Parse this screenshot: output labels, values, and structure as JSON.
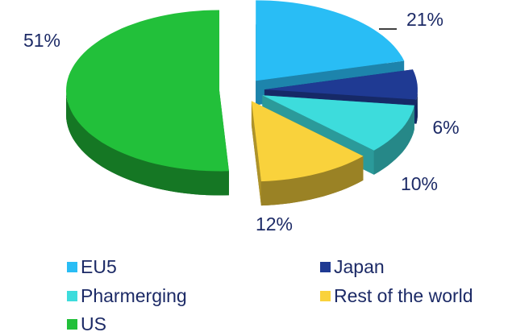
{
  "chart_data": {
    "type": "pie3d",
    "categories": [
      "EU5",
      "Japan",
      "Pharmerging",
      "Rest of the world",
      "US"
    ],
    "values": [
      21,
      6,
      10,
      12,
      51
    ],
    "value_labels": [
      "21%",
      "6%",
      "10%",
      "12%",
      "51%"
    ],
    "colors": [
      "#29bdf5",
      "#1f3a93",
      "#3ddcdc",
      "#f9d23c",
      "#22c03a"
    ]
  }
}
